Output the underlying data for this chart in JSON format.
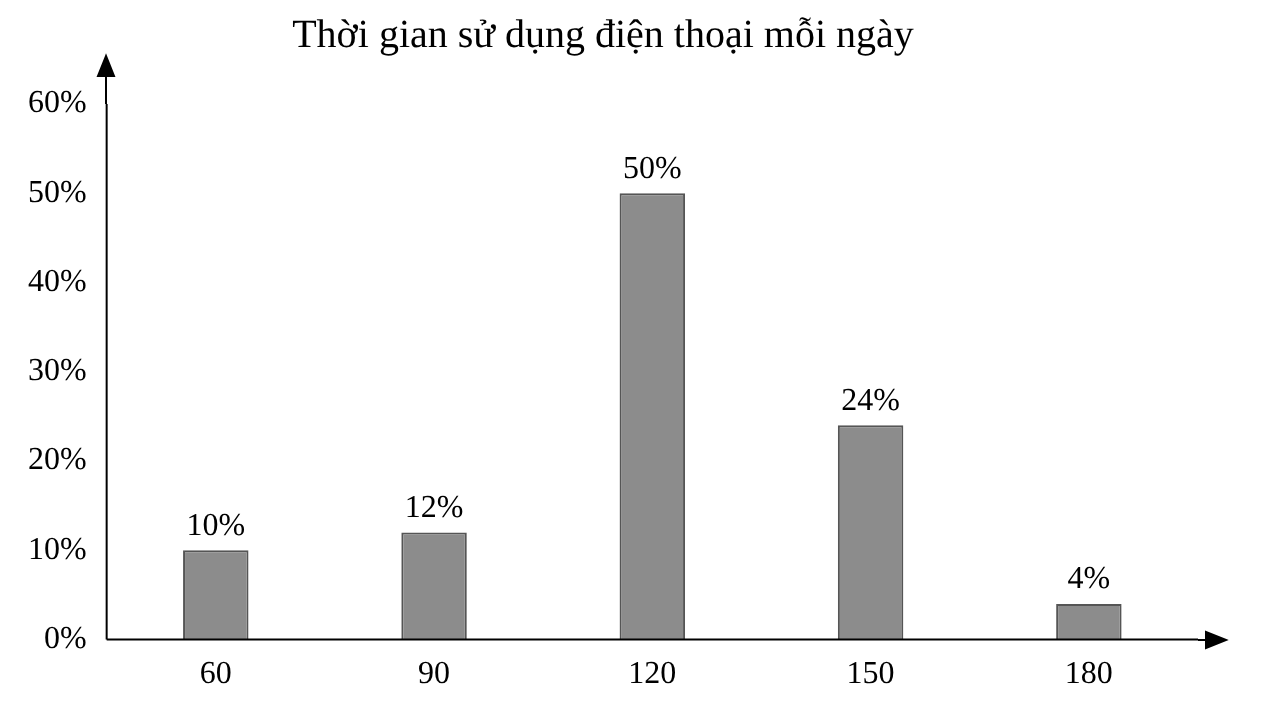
{
  "chart_data": {
    "type": "bar",
    "title": "Thời gian sử dụng điện thoại mỗi ngày",
    "categories": [
      "60",
      "90",
      "120",
      "150",
      "180"
    ],
    "values": [
      10,
      12,
      50,
      24,
      4
    ],
    "value_labels": [
      "10%",
      "12%",
      "50%",
      "24%",
      "4%"
    ],
    "color": "#8c8c8c",
    "ylim": [
      0,
      60
    ],
    "yticks": [
      {
        "value": 0,
        "label": "0%"
      },
      {
        "value": 10,
        "label": "10%"
      },
      {
        "value": 20,
        "label": "20%"
      },
      {
        "value": 30,
        "label": "30%"
      },
      {
        "value": 40,
        "label": "40%"
      },
      {
        "value": 50,
        "label": "50%"
      },
      {
        "value": 60,
        "label": "60%"
      }
    ],
    "grid": false,
    "legend": false
  }
}
